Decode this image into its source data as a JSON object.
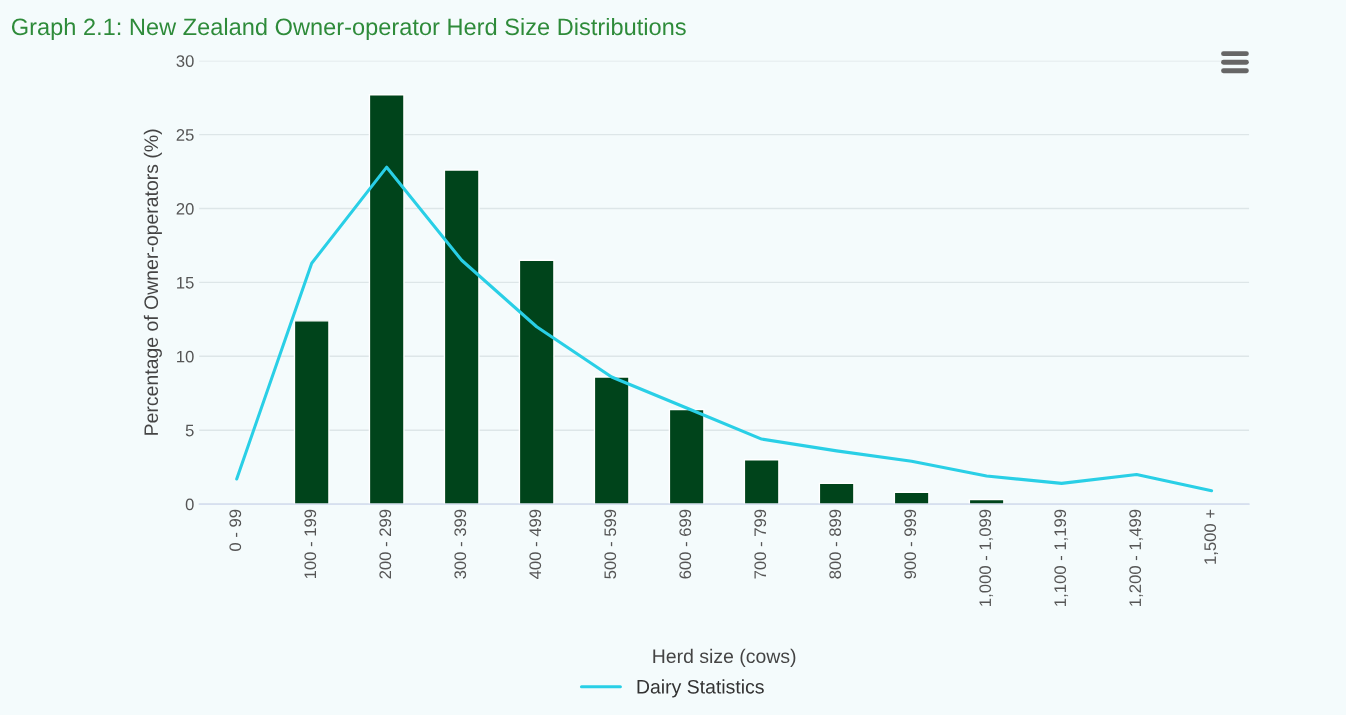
{
  "chart_data": {
    "type": "bar",
    "title": "Graph 2.1: New Zealand Owner-operator Herd Size Distributions",
    "xlabel": "Herd size (cows)",
    "ylabel": "Percentage of Owner-operators (%)",
    "categories": [
      "0 - 99",
      "100 - 199",
      "200 - 299",
      "300 - 399",
      "400 - 499",
      "500 - 599",
      "600 - 699",
      "700 - 799",
      "800 - 899",
      "900 - 999",
      "1,000 - 1,099",
      "1,100 - 1,199",
      "1,200 - 1,499",
      "1,500 +"
    ],
    "series": [
      {
        "color": "#00441b",
        "values": [
          null,
          12.4,
          27.7,
          22.6,
          16.5,
          8.6,
          6.4,
          3.0,
          1.4,
          0.8,
          0.3,
          null,
          null,
          null
        ]
      },
      {
        "name": "Dairy Statistics",
        "type": "line",
        "color": "#29cfe6",
        "values": [
          1.7,
          16.3,
          22.8,
          16.5,
          12.0,
          8.6,
          6.5,
          4.4,
          3.6,
          2.9,
          1.9,
          1.4,
          2.0,
          0.9
        ]
      }
    ],
    "ylim": [
      0,
      30
    ],
    "yticks": [
      0,
      5,
      10,
      15,
      20,
      25,
      30
    ],
    "grid": "y",
    "legend": "bottom",
    "marker": "none",
    "line_style": "solid"
  }
}
